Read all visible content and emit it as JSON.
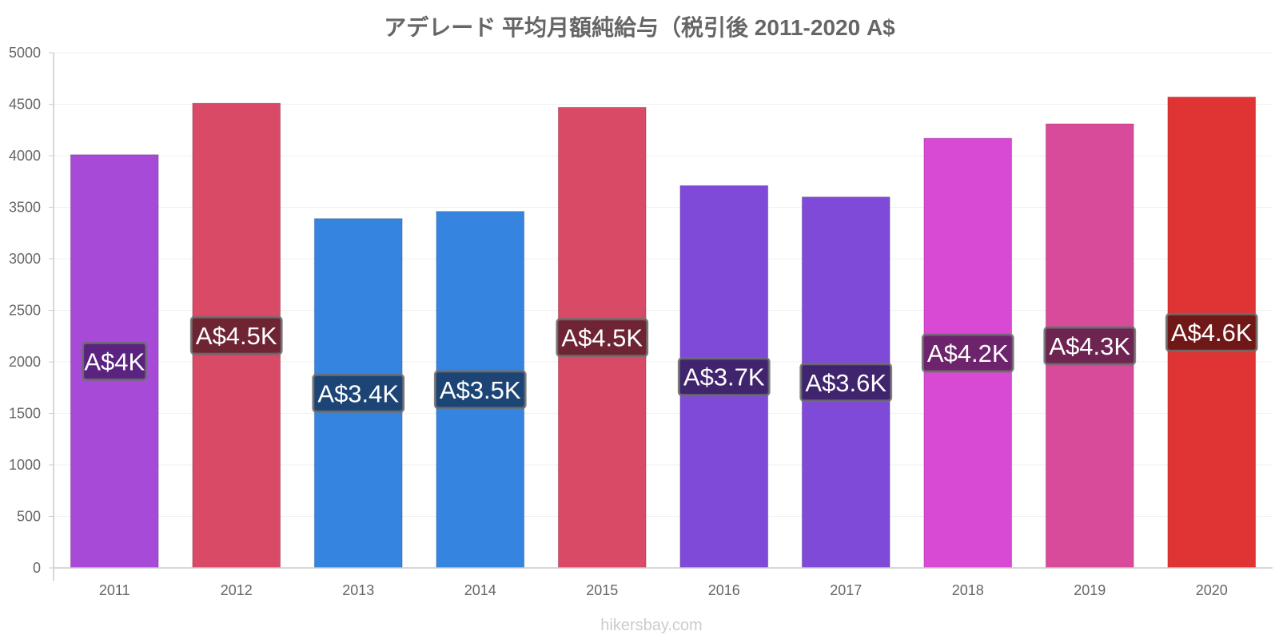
{
  "chart_data": {
    "type": "bar",
    "title": "アデレード 平均月額純給与（税引後 2011-2020 A$",
    "xlabel": "",
    "ylabel": "",
    "categories": [
      "2011",
      "2012",
      "2013",
      "2014",
      "2015",
      "2016",
      "2017",
      "2018",
      "2019",
      "2020"
    ],
    "values": [
      4010,
      4510,
      3390,
      3460,
      4470,
      3710,
      3600,
      4170,
      4310,
      4570
    ],
    "data_labels": [
      "A$4K",
      "A$4.5K",
      "A$3.4K",
      "A$3.5K",
      "A$4.5K",
      "A$3.7K",
      "A$3.6K",
      "A$4.2K",
      "A$4.3K",
      "A$4.6K"
    ],
    "bar_colors": [
      "#a84ad8",
      "#d84a66",
      "#3584e0",
      "#3584e0",
      "#d84a66",
      "#7f4ad8",
      "#7f4ad8",
      "#d84ad4",
      "#d84a9a",
      "#e03434"
    ],
    "label_bg_colors": [
      "#5a2380",
      "#6e2433",
      "#1c4576",
      "#1c4576",
      "#6e2433",
      "#40256e",
      "#40256e",
      "#6e246c",
      "#6e2450",
      "#701818"
    ],
    "ylim": [
      0,
      5000
    ],
    "yticks": [
      0,
      500,
      1000,
      1500,
      2000,
      2500,
      3000,
      3500,
      4000,
      4500,
      5000
    ],
    "grid": true,
    "legend": "none"
  },
  "footer": {
    "watermark": "hikersbay.com"
  }
}
